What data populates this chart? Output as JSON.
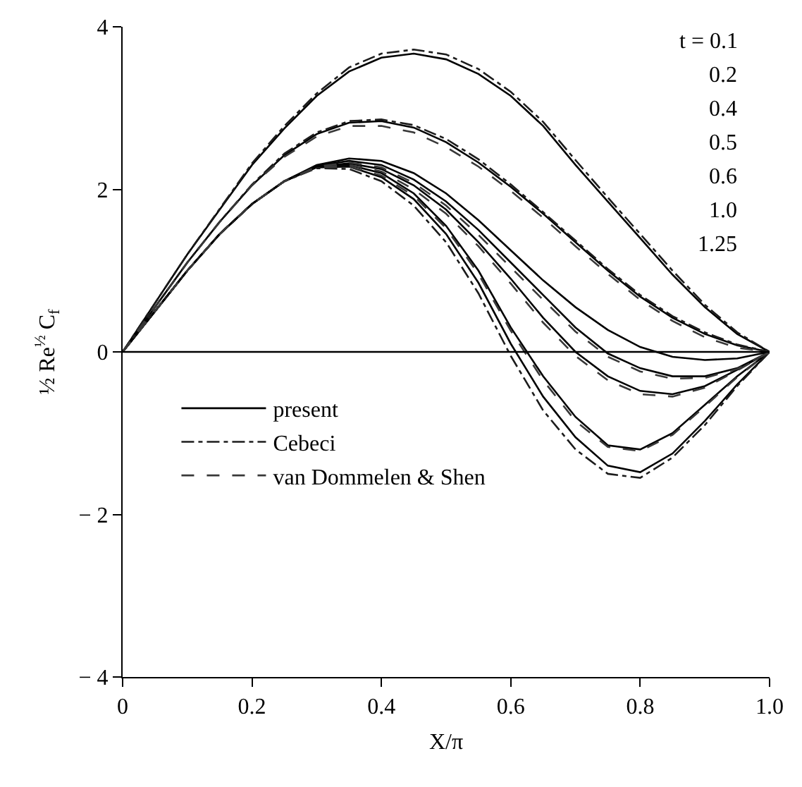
{
  "chart_data": {
    "type": "line",
    "xlabel": "X/π",
    "ylabel": "½ Re$^{½}$ C$_{f}$",
    "xlim": [
      0,
      1
    ],
    "ylim": [
      -4,
      4
    ],
    "xticks": [
      0,
      0.2,
      0.4,
      0.6,
      0.8,
      {
        "value": 1,
        "label": "1.0"
      }
    ],
    "yticks": [
      {
        "value": -4,
        "label": "− 4"
      },
      {
        "value": -2,
        "label": "− 2"
      },
      0,
      2,
      4
    ],
    "grid": false,
    "legend": "left",
    "marker": "none",
    "ref_lines": [
      {
        "axis": "y",
        "value": 0,
        "color": "#000000"
      }
    ],
    "annotations": [
      "t = 0.1",
      "0.2",
      "0.4",
      "0.5",
      "0.6",
      "1.0",
      "1.25"
    ],
    "series": [
      {
        "name": "present",
        "color": "#000000",
        "line_style": "solid",
        "x": [
          0,
          0.05,
          0.1,
          0.15,
          0.2,
          0.25,
          0.3,
          0.35,
          0.4,
          0.45,
          0.5,
          0.55,
          0.6,
          0.65,
          0.7,
          0.75,
          0.8,
          0.85,
          0.9,
          0.95,
          1,
          null,
          0,
          0.05,
          0.1,
          0.15,
          0.2,
          0.25,
          0.3,
          0.35,
          0.4,
          0.45,
          0.5,
          0.55,
          0.6,
          0.65,
          0.7,
          0.75,
          0.8,
          0.85,
          0.9,
          0.95,
          1,
          null,
          0,
          0.05,
          0.1,
          0.15,
          0.2,
          0.25,
          0.3,
          0.35,
          0.4,
          0.45,
          0.5,
          0.55,
          0.6,
          0.65,
          0.7,
          0.75,
          0.8,
          0.85,
          0.9,
          0.95,
          1,
          null,
          0,
          0.05,
          0.1,
          0.15,
          0.2,
          0.25,
          0.3,
          0.35,
          0.4,
          0.45,
          0.5,
          0.55,
          0.6,
          0.65,
          0.7,
          0.75,
          0.8,
          0.85,
          0.9,
          0.95,
          1,
          null,
          0,
          0.05,
          0.1,
          0.15,
          0.2,
          0.25,
          0.3,
          0.35,
          0.4,
          0.45,
          0.5,
          0.55,
          0.6,
          0.65,
          0.7,
          0.75,
          0.8,
          0.85,
          0.9,
          0.95,
          1,
          null,
          0,
          0.05,
          0.1,
          0.15,
          0.2,
          0.25,
          0.3,
          0.35,
          0.4,
          0.45,
          0.5,
          0.55,
          0.6,
          0.65,
          0.7,
          0.75,
          0.8,
          0.85,
          0.9,
          0.95,
          1,
          null,
          0,
          0.05,
          0.1,
          0.15,
          0.2,
          0.25,
          0.3,
          0.35,
          0.4,
          0.45,
          0.5,
          0.55,
          0.6,
          0.65,
          0.7,
          0.75,
          0.8,
          0.85,
          0.9,
          0.95,
          1
        ],
        "values": [
          0,
          0.6,
          1.2,
          1.75,
          2.3,
          2.75,
          3.15,
          3.45,
          3.62,
          3.67,
          3.6,
          3.42,
          3.15,
          2.78,
          2.3,
          1.85,
          1.4,
          0.95,
          0.55,
          0.22,
          0,
          null,
          0,
          0.55,
          1.1,
          1.6,
          2.05,
          2.42,
          2.68,
          2.82,
          2.84,
          2.76,
          2.58,
          2.33,
          2.03,
          1.7,
          1.35,
          1.0,
          0.68,
          0.42,
          0.22,
          0.08,
          0,
          null,
          0,
          0.5,
          1.0,
          1.45,
          1.82,
          2.1,
          2.3,
          2.38,
          2.35,
          2.2,
          1.95,
          1.62,
          1.25,
          0.88,
          0.55,
          0.27,
          0.06,
          -0.06,
          -0.1,
          -0.08,
          0,
          null,
          0,
          0.5,
          1.0,
          1.45,
          1.82,
          2.1,
          2.29,
          2.35,
          2.3,
          2.12,
          1.85,
          1.5,
          1.1,
          0.7,
          0.3,
          -0.02,
          -0.2,
          -0.3,
          -0.3,
          -0.2,
          0,
          null,
          0,
          0.5,
          1.0,
          1.45,
          1.82,
          2.1,
          2.28,
          2.32,
          2.25,
          2.05,
          1.75,
          1.35,
          0.9,
          0.42,
          0,
          -0.3,
          -0.48,
          -0.52,
          -0.42,
          -0.22,
          0,
          null,
          0,
          0.5,
          1.0,
          1.45,
          1.82,
          2.1,
          2.28,
          2.3,
          2.2,
          1.95,
          1.55,
          1.0,
          0.3,
          -0.3,
          -0.8,
          -1.15,
          -1.2,
          -1.0,
          -0.65,
          -0.3,
          0,
          null,
          0,
          0.5,
          1.0,
          1.45,
          1.82,
          2.1,
          2.27,
          2.28,
          2.15,
          1.88,
          1.45,
          0.85,
          0.1,
          -0.55,
          -1.05,
          -1.4,
          -1.48,
          -1.25,
          -0.85,
          -0.4,
          0
        ]
      },
      {
        "name": "Cebeci",
        "color": "#1c1c1c",
        "line_style": "dashdot",
        "x": [
          0,
          0.05,
          0.1,
          0.15,
          0.2,
          0.25,
          0.3,
          0.35,
          0.4,
          0.45,
          0.5,
          0.55,
          0.6,
          0.65,
          0.7,
          0.75,
          0.8,
          0.85,
          0.9,
          0.95,
          1,
          null,
          0,
          0.05,
          0.1,
          0.15,
          0.2,
          0.25,
          0.3,
          0.35,
          0.4,
          0.45,
          0.5,
          0.55,
          0.6,
          0.65,
          0.7,
          0.75,
          0.8,
          0.85,
          0.9,
          0.95,
          1,
          null,
          0,
          0.05,
          0.1,
          0.15,
          0.2,
          0.25,
          0.3,
          0.35,
          0.4,
          0.45,
          0.5,
          0.55,
          0.6,
          0.65,
          0.7,
          0.75,
          0.8,
          0.85,
          0.9,
          0.95,
          1
        ],
        "values": [
          0,
          0.6,
          1.2,
          1.76,
          2.32,
          2.78,
          3.18,
          3.5,
          3.67,
          3.72,
          3.66,
          3.48,
          3.2,
          2.83,
          2.36,
          1.9,
          1.45,
          1.0,
          0.58,
          0.24,
          0,
          null,
          0,
          0.55,
          1.1,
          1.6,
          2.06,
          2.44,
          2.7,
          2.84,
          2.86,
          2.79,
          2.62,
          2.37,
          2.06,
          1.72,
          1.37,
          1.02,
          0.7,
          0.44,
          0.24,
          0.09,
          0,
          null,
          0,
          0.5,
          1.0,
          1.45,
          1.82,
          2.1,
          2.26,
          2.25,
          2.1,
          1.8,
          1.35,
          0.72,
          -0.05,
          -0.72,
          -1.2,
          -1.5,
          -1.55,
          -1.3,
          -0.9,
          -0.42,
          0
        ]
      },
      {
        "name": "van Dommelen & Shen",
        "color": "#383838",
        "line_style": "dashed",
        "x": [
          0,
          0.05,
          0.1,
          0.15,
          0.2,
          0.25,
          0.3,
          0.35,
          0.4,
          0.45,
          0.5,
          0.55,
          0.6,
          0.65,
          0.7,
          0.75,
          0.8,
          0.85,
          0.9,
          0.95,
          1,
          null,
          0,
          0.05,
          0.1,
          0.15,
          0.2,
          0.25,
          0.3,
          0.35,
          0.4,
          0.45,
          0.5,
          0.55,
          0.6,
          0.65,
          0.7,
          0.75,
          0.8,
          0.85,
          0.9,
          0.95,
          1,
          null,
          0,
          0.05,
          0.1,
          0.15,
          0.2,
          0.25,
          0.3,
          0.35,
          0.4,
          0.45,
          0.5,
          0.55,
          0.6,
          0.65,
          0.7,
          0.75,
          0.8,
          0.85,
          0.9,
          0.95,
          1,
          null,
          0,
          0.05,
          0.1,
          0.15,
          0.2,
          0.25,
          0.3,
          0.35,
          0.4,
          0.45,
          0.5,
          0.55,
          0.6,
          0.65,
          0.7,
          0.75,
          0.8,
          0.85,
          0.9,
          0.95,
          1
        ],
        "values": [
          0,
          0.55,
          1.1,
          1.6,
          2.05,
          2.4,
          2.65,
          2.78,
          2.78,
          2.7,
          2.52,
          2.28,
          1.98,
          1.65,
          1.3,
          0.96,
          0.64,
          0.38,
          0.18,
          0.05,
          0,
          null,
          0,
          0.5,
          1.0,
          1.45,
          1.82,
          2.1,
          2.28,
          2.33,
          2.27,
          2.08,
          1.8,
          1.44,
          1.04,
          0.64,
          0.25,
          -0.06,
          -0.24,
          -0.33,
          -0.32,
          -0.21,
          0,
          null,
          0,
          0.5,
          1.0,
          1.45,
          1.82,
          2.1,
          2.27,
          2.3,
          2.22,
          2.0,
          1.7,
          1.3,
          0.84,
          0.36,
          -0.05,
          -0.35,
          -0.52,
          -0.55,
          -0.44,
          -0.23,
          0,
          null,
          0,
          0.5,
          1.0,
          1.45,
          1.82,
          2.1,
          2.27,
          2.28,
          2.17,
          1.92,
          1.52,
          0.96,
          0.26,
          -0.35,
          -0.85,
          -1.17,
          -1.22,
          -1.02,
          -0.67,
          -0.31,
          0
        ]
      }
    ]
  }
}
